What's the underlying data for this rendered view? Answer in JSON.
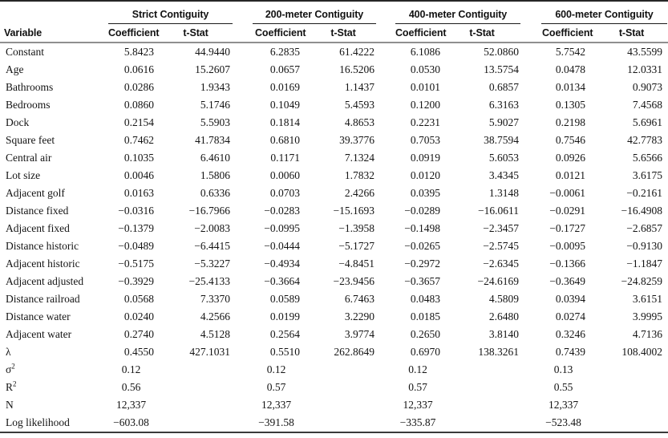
{
  "colors": {
    "rule_top": "#262626",
    "rule_group_underline": "#1a1a1a",
    "rule_header_separator": "#8f8f8f",
    "rule_bottom": "#3a3a3a",
    "text": "#141414"
  },
  "table": {
    "variable_header": "Variable",
    "groups": [
      {
        "label": "Strict Contiguity"
      },
      {
        "label": "200-meter Contiguity"
      },
      {
        "label": "400-meter Contiguity"
      },
      {
        "label": "600-meter Contiguity"
      }
    ],
    "sub_headers": {
      "coefficient": "Coefficient",
      "tstat": "t-Stat"
    },
    "rows": [
      {
        "label": "Constant",
        "cells": [
          "5.8423",
          "44.9440",
          "6.2835",
          "61.4222",
          "6.1086",
          "52.0860",
          "5.7542",
          "43.5599"
        ]
      },
      {
        "label": "Age",
        "cells": [
          "0.0616",
          "15.2607",
          "0.0657",
          "16.5206",
          "0.0530",
          "13.5754",
          "0.0478",
          "12.0331"
        ]
      },
      {
        "label": "Bathrooms",
        "cells": [
          "0.0286",
          "1.9343",
          "0.0169",
          "1.1437",
          "0.0101",
          "0.6857",
          "0.0134",
          "0.9073"
        ]
      },
      {
        "label": "Bedrooms",
        "cells": [
          "0.0860",
          "5.1746",
          "0.1049",
          "5.4593",
          "0.1200",
          "6.3163",
          "0.1305",
          "7.4568"
        ]
      },
      {
        "label": "Dock",
        "cells": [
          "0.2154",
          "5.5903",
          "0.1814",
          "4.8653",
          "0.2231",
          "5.9027",
          "0.2198",
          "5.6961"
        ]
      },
      {
        "label": "Square feet",
        "cells": [
          "0.7462",
          "41.7834",
          "0.6810",
          "39.3776",
          "0.7053",
          "38.7594",
          "0.7546",
          "42.7783"
        ]
      },
      {
        "label": "Central air",
        "cells": [
          "0.1035",
          "6.4610",
          "0.1171",
          "7.1324",
          "0.0919",
          "5.6053",
          "0.0926",
          "5.6566"
        ]
      },
      {
        "label": "Lot size",
        "cells": [
          "0.0046",
          "1.5806",
          "0.0060",
          "1.7832",
          "0.0120",
          "3.4345",
          "0.0121",
          "3.6175"
        ]
      },
      {
        "label": "Adjacent golf",
        "cells": [
          "0.0163",
          "0.6336",
          "0.0703",
          "2.4266",
          "0.0395",
          "1.3148",
          "−0.0061",
          "−0.2161"
        ]
      },
      {
        "label": "Distance fixed",
        "cells": [
          "−0.0316",
          "−16.7966",
          "−0.0283",
          "−15.1693",
          "−0.0289",
          "−16.0611",
          "−0.0291",
          "−16.4908"
        ]
      },
      {
        "label": "Adjacent fixed",
        "cells": [
          "−0.1379",
          "−2.0083",
          "−0.0995",
          "−1.3958",
          "−0.1498",
          "−2.3457",
          "−0.1727",
          "−2.6857"
        ]
      },
      {
        "label": "Distance historic",
        "cells": [
          "−0.0489",
          "−6.4415",
          "−0.0444",
          "−5.1727",
          "−0.0265",
          "−2.5745",
          "−0.0095",
          "−0.9130"
        ]
      },
      {
        "label": "Adjacent historic",
        "cells": [
          "−0.5175",
          "−5.3227",
          "−0.4934",
          "−4.8451",
          "−0.2972",
          "−2.6345",
          "−0.1366",
          "−1.1847"
        ]
      },
      {
        "label": "Adjacent adjusted",
        "cells": [
          "−0.3929",
          "−25.4133",
          "−0.3664",
          "−23.9456",
          "−0.3657",
          "−24.6169",
          "−0.3649",
          "−24.8259"
        ]
      },
      {
        "label": "Distance railroad",
        "cells": [
          "0.0568",
          "7.3370",
          "0.0589",
          "6.7463",
          "0.0483",
          "4.5809",
          "0.0394",
          "3.6151"
        ]
      },
      {
        "label": "Distance water",
        "cells": [
          "0.0240",
          "4.2566",
          "0.0199",
          "3.2290",
          "0.0185",
          "2.6480",
          "0.0274",
          "3.9995"
        ]
      },
      {
        "label": "Adjacent water",
        "cells": [
          "0.2740",
          "4.5128",
          "0.2564",
          "3.9774",
          "0.2650",
          "3.8140",
          "0.3246",
          "4.7136"
        ]
      },
      {
        "label": "λ",
        "cells": [
          "0.4550",
          "427.1031",
          "0.5510",
          "262.8649",
          "0.6970",
          "138.3261",
          "0.7439",
          "108.4002"
        ]
      },
      {
        "label": "σ^2",
        "summary": true,
        "cells": [
          "0.12",
          "",
          "0.12",
          "",
          "0.12",
          "",
          "0.13",
          ""
        ]
      },
      {
        "label": "R^2",
        "summary": true,
        "cells": [
          "0.56",
          "",
          "0.57",
          "",
          "0.57",
          "",
          "0.55",
          ""
        ]
      },
      {
        "label": "N",
        "summary": true,
        "cells": [
          "12,337",
          "",
          "12,337",
          "",
          "12,337",
          "",
          "12,337",
          ""
        ]
      },
      {
        "label": "Log likelihood",
        "summary": true,
        "cells": [
          "−603.08",
          "",
          "−391.58",
          "",
          "−335.87",
          "",
          "−523.48",
          ""
        ]
      }
    ]
  }
}
